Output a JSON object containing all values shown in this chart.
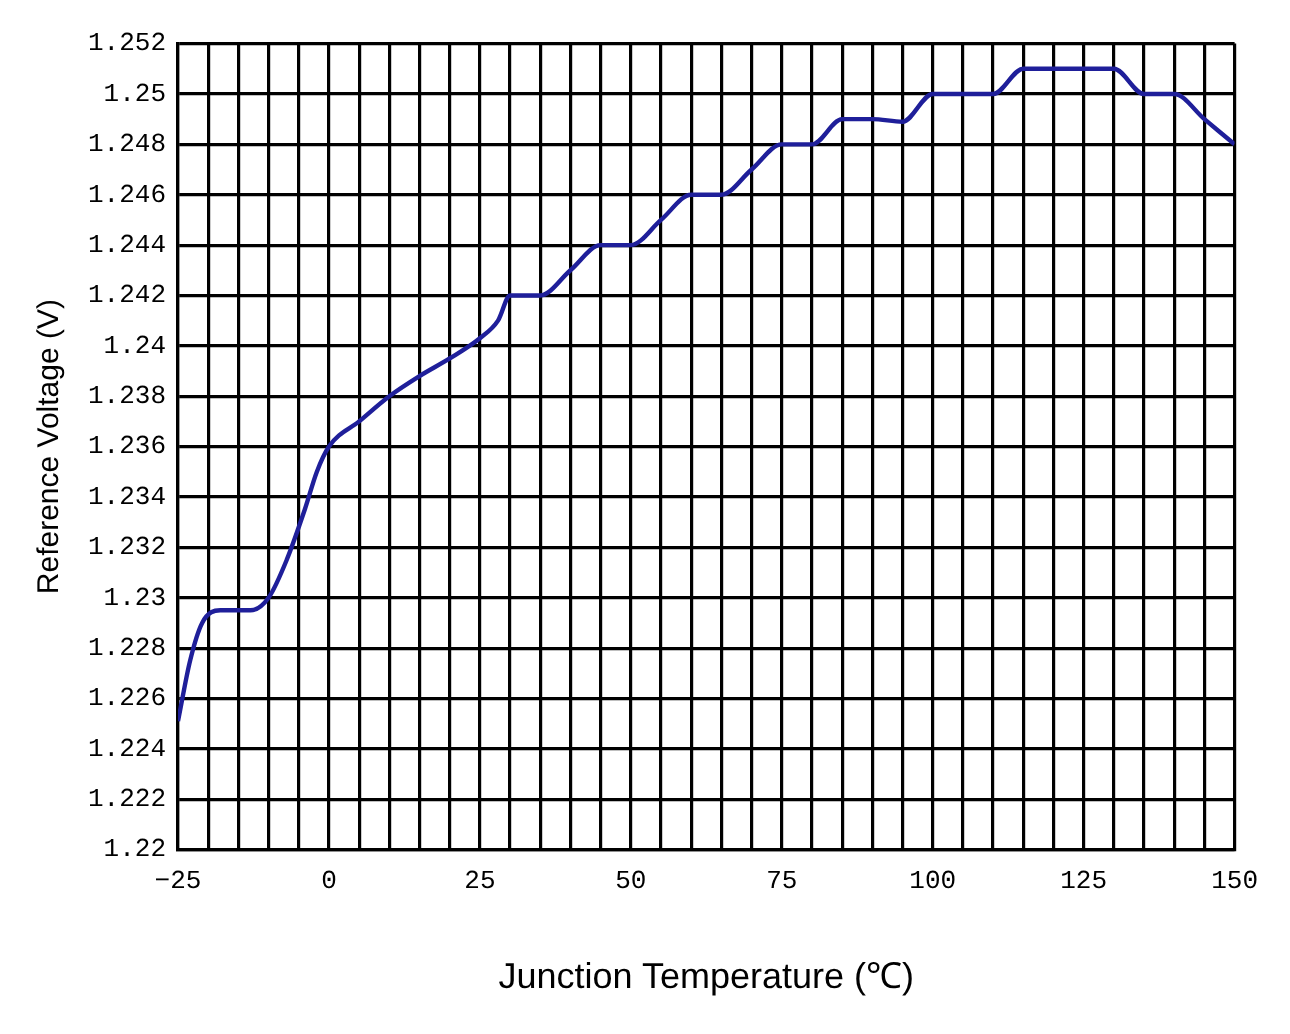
{
  "chart_data": {
    "type": "line",
    "xlabel": "Junction Temperature (℃)",
    "ylabel": "Reference Voltage (V)",
    "x": [
      -25,
      -23,
      -21,
      -18,
      -13,
      -10,
      -7,
      -4,
      -2,
      0,
      5,
      10,
      15,
      20,
      25,
      28,
      30,
      35,
      40,
      45,
      50,
      55,
      60,
      65,
      70,
      75,
      80,
      85,
      90,
      95,
      100,
      105,
      110,
      115,
      120,
      125,
      130,
      135,
      140,
      145,
      150
    ],
    "series": [
      {
        "color": "#1f1f9a",
        "values": [
          1.2251,
          1.2275,
          1.229,
          1.2295,
          1.2295,
          1.23,
          1.2315,
          1.2335,
          1.235,
          1.236,
          1.237,
          1.238,
          1.2388,
          1.2395,
          1.2403,
          1.241,
          1.242,
          1.242,
          1.243,
          1.244,
          1.244,
          1.245,
          1.246,
          1.246,
          1.247,
          1.248,
          1.248,
          1.249,
          1.249,
          1.2489,
          1.25,
          1.25,
          1.25,
          1.251,
          1.251,
          1.251,
          1.251,
          1.25,
          1.25,
          1.249,
          1.248
        ]
      }
    ],
    "xlim": [
      -25,
      150
    ],
    "xticks": [
      -25,
      {
        "value": -20,
        "label": null
      },
      {
        "value": -15,
        "label": null
      },
      {
        "value": -10,
        "label": null
      },
      {
        "value": -5,
        "label": null
      },
      0,
      {
        "value": 5,
        "label": null
      },
      {
        "value": 10,
        "label": null
      },
      {
        "value": 15,
        "label": null
      },
      {
        "value": 20,
        "label": null
      },
      25,
      {
        "value": 30,
        "label": null
      },
      {
        "value": 35,
        "label": null
      },
      {
        "value": 40,
        "label": null
      },
      {
        "value": 45,
        "label": null
      },
      50,
      {
        "value": 55,
        "label": null
      },
      {
        "value": 60,
        "label": null
      },
      {
        "value": 65,
        "label": null
      },
      {
        "value": 70,
        "label": null
      },
      75,
      {
        "value": 80,
        "label": null
      },
      {
        "value": 85,
        "label": null
      },
      {
        "value": 90,
        "label": null
      },
      {
        "value": 95,
        "label": null
      },
      100,
      {
        "value": 105,
        "label": null
      },
      {
        "value": 110,
        "label": null
      },
      {
        "value": 115,
        "label": null
      },
      {
        "value": 120,
        "label": null
      },
      125,
      {
        "value": 130,
        "label": null
      },
      {
        "value": 135,
        "label": null
      },
      {
        "value": 140,
        "label": null
      },
      {
        "value": 145,
        "label": null
      },
      150
    ],
    "ylim": [
      1.22,
      1.252
    ],
    "yticks": [
      1.22,
      1.222,
      1.224,
      1.226,
      1.228,
      1.23,
      1.232,
      1.234,
      1.236,
      1.238,
      1.24,
      1.242,
      1.244,
      1.246,
      1.248,
      1.25,
      1.252
    ],
    "grid": true,
    "legend": false,
    "marker": "none",
    "line_style": "solid"
  }
}
